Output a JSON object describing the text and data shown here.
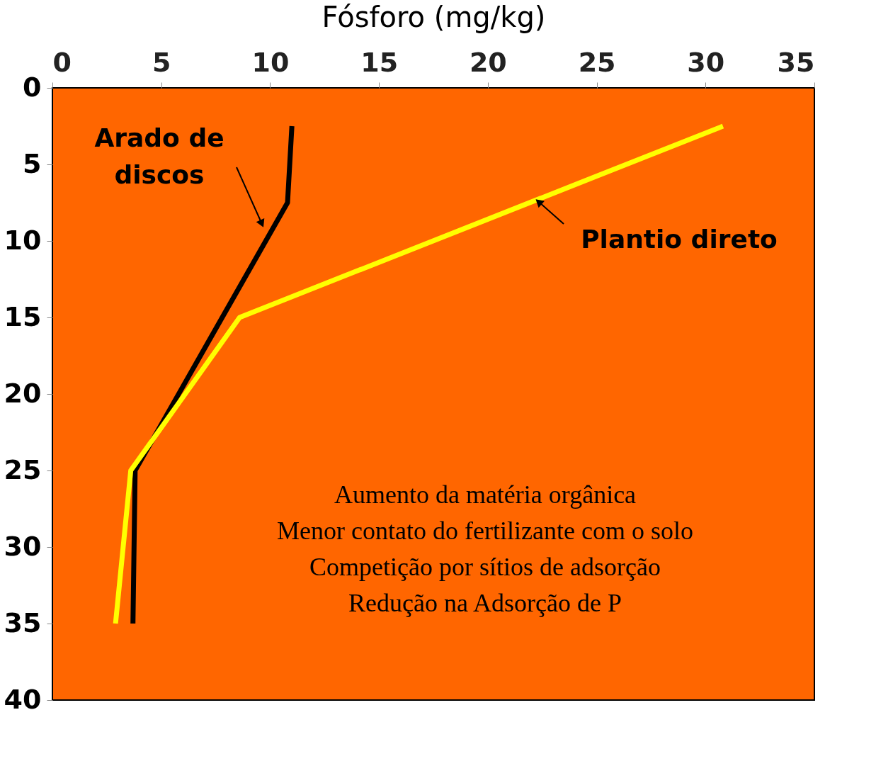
{
  "chart_data": {
    "type": "line",
    "xlabel": "Fósforo (mg/kg)",
    "xlim": [
      0,
      35
    ],
    "xticks": [
      0,
      5,
      10,
      15,
      20,
      25,
      30,
      35
    ],
    "ylim": [
      40,
      0
    ],
    "yticks": [
      0,
      5,
      10,
      15,
      20,
      25,
      30,
      35,
      40
    ],
    "grid": false,
    "marker": "none",
    "line_style": "solid",
    "series": [
      {
        "name": "Arado de discos",
        "color": "#000000",
        "x": [
          11.0,
          10.8,
          3.8,
          3.7
        ],
        "values": [
          2.5,
          7.5,
          25,
          35
        ]
      },
      {
        "name": "Plantio direto",
        "color": "#ffff00",
        "x": [
          30.8,
          8.6,
          3.6,
          2.9
        ],
        "values": [
          2.5,
          15,
          25,
          35
        ]
      }
    ],
    "annotations": [
      "Aumento da matéria orgânica",
      "Menor contato do fertilizante com o solo",
      "Competição por sítios de adsorção",
      "Redução na Adsorção de P"
    ]
  }
}
